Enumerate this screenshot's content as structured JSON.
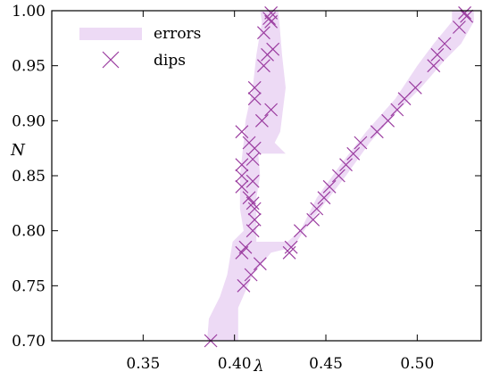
{
  "chart_data": {
    "type": "scatter",
    "title": "",
    "xlabel": "λ",
    "ylabel": "N",
    "xlim": [
      0.3,
      0.535
    ],
    "ylim": [
      0.7,
      1.0
    ],
    "xticks": [
      0.35,
      0.4,
      0.45,
      0.5
    ],
    "xtick_labels": [
      "0.35",
      "0.40",
      "0.45",
      "0.50"
    ],
    "yticks": [
      0.7,
      0.75,
      0.8,
      0.85,
      0.9,
      0.95,
      1.0
    ],
    "ytick_labels": [
      "0.70",
      "0.75",
      "0.80",
      "0.85",
      "0.90",
      "0.95",
      "1.00"
    ],
    "grid": false,
    "legend": {
      "position": "top-left",
      "entries": [
        "errors",
        "dips"
      ]
    },
    "colors": {
      "dips": "#9b3da0",
      "errors": "#eddaf5"
    },
    "series": [
      {
        "name": "dips",
        "points": [
          [
            0.387,
            0.7
          ],
          [
            0.405,
            0.75
          ],
          [
            0.409,
            0.76
          ],
          [
            0.414,
            0.77
          ],
          [
            0.404,
            0.78
          ],
          [
            0.406,
            0.785
          ],
          [
            0.41,
            0.8
          ],
          [
            0.411,
            0.81
          ],
          [
            0.411,
            0.82
          ],
          [
            0.41,
            0.825
          ],
          [
            0.408,
            0.83
          ],
          [
            0.404,
            0.84
          ],
          [
            0.41,
            0.845
          ],
          [
            0.404,
            0.85
          ],
          [
            0.404,
            0.86
          ],
          [
            0.41,
            0.865
          ],
          [
            0.411,
            0.875
          ],
          [
            0.408,
            0.88
          ],
          [
            0.404,
            0.89
          ],
          [
            0.415,
            0.9
          ],
          [
            0.42,
            0.91
          ],
          [
            0.411,
            0.92
          ],
          [
            0.411,
            0.93
          ],
          [
            0.416,
            0.95
          ],
          [
            0.418,
            0.96
          ],
          [
            0.421,
            0.965
          ],
          [
            0.416,
            0.98
          ],
          [
            0.42,
            0.99
          ],
          [
            0.419,
            0.993
          ],
          [
            0.42,
            0.998
          ],
          [
            0.43,
            0.78
          ],
          [
            0.431,
            0.785
          ],
          [
            0.436,
            0.8
          ],
          [
            0.443,
            0.81
          ],
          [
            0.445,
            0.82
          ],
          [
            0.449,
            0.83
          ],
          [
            0.452,
            0.84
          ],
          [
            0.457,
            0.85
          ],
          [
            0.461,
            0.86
          ],
          [
            0.465,
            0.87
          ],
          [
            0.469,
            0.88
          ],
          [
            0.478,
            0.89
          ],
          [
            0.484,
            0.9
          ],
          [
            0.489,
            0.91
          ],
          [
            0.493,
            0.92
          ],
          [
            0.499,
            0.93
          ],
          [
            0.509,
            0.95
          ],
          [
            0.511,
            0.96
          ],
          [
            0.515,
            0.97
          ],
          [
            0.523,
            0.985
          ],
          [
            0.527,
            0.995
          ],
          [
            0.526,
            0.998
          ]
        ]
      }
    ],
    "errors": {
      "name": "errors",
      "polygon": [
        [
          0.385,
          0.7
        ],
        [
          0.402,
          0.7
        ],
        [
          0.402,
          0.73
        ],
        [
          0.41,
          0.76
        ],
        [
          0.42,
          0.78
        ],
        [
          0.432,
          0.785
        ],
        [
          0.438,
          0.8
        ],
        [
          0.447,
          0.82
        ],
        [
          0.461,
          0.85
        ],
        [
          0.474,
          0.88
        ],
        [
          0.49,
          0.91
        ],
        [
          0.502,
          0.93
        ],
        [
          0.515,
          0.955
        ],
        [
          0.524,
          0.97
        ],
        [
          0.531,
          0.99
        ],
        [
          0.531,
          1.0
        ],
        [
          0.519,
          1.0
        ],
        [
          0.519,
          0.99
        ],
        [
          0.509,
          0.97
        ],
        [
          0.5,
          0.95
        ],
        [
          0.488,
          0.92
        ],
        [
          0.472,
          0.89
        ],
        [
          0.458,
          0.86
        ],
        [
          0.445,
          0.83
        ],
        [
          0.436,
          0.8
        ],
        [
          0.429,
          0.79
        ],
        [
          0.412,
          0.79
        ],
        [
          0.412,
          0.8
        ],
        [
          0.412,
          0.83
        ],
        [
          0.414,
          0.85
        ],
        [
          0.413,
          0.87
        ],
        [
          0.428,
          0.87
        ],
        [
          0.422,
          0.88
        ],
        [
          0.425,
          0.89
        ],
        [
          0.428,
          0.93
        ],
        [
          0.426,
          0.96
        ],
        [
          0.425,
          0.98
        ],
        [
          0.424,
          1.0
        ],
        [
          0.414,
          1.0
        ],
        [
          0.415,
          0.99
        ],
        [
          0.412,
          0.96
        ],
        [
          0.41,
          0.93
        ],
        [
          0.406,
          0.9
        ],
        [
          0.405,
          0.88
        ],
        [
          0.403,
          0.85
        ],
        [
          0.403,
          0.82
        ],
        [
          0.405,
          0.8
        ],
        [
          0.399,
          0.79
        ],
        [
          0.396,
          0.76
        ],
        [
          0.392,
          0.74
        ],
        [
          0.386,
          0.72
        ]
      ]
    }
  }
}
